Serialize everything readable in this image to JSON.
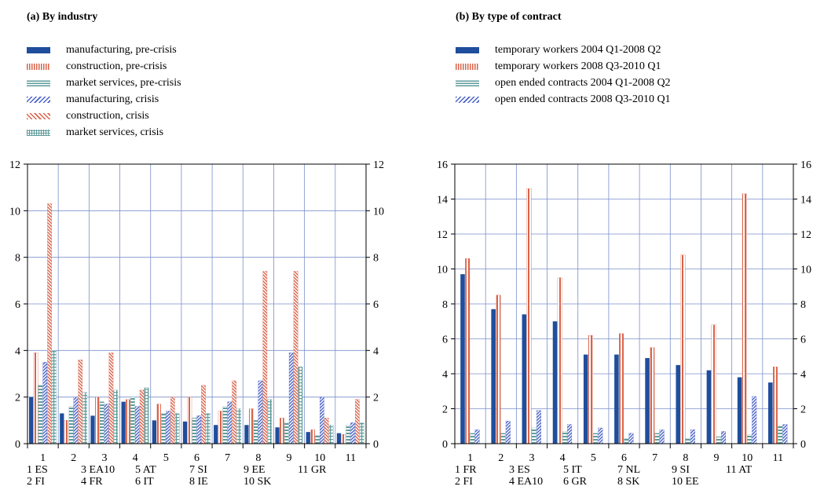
{
  "panels": [
    {
      "title": "(a) By industry",
      "legend": [
        {
          "label": "manufacturing, pre-crisis",
          "color": "#1f4e9c",
          "pattern": "solid"
        },
        {
          "label": "construction, pre-crisis",
          "color": "#d9634a",
          "pattern": "vertical"
        },
        {
          "label": "market services, pre-crisis",
          "color": "#5e9b9b",
          "pattern": "horizontal"
        },
        {
          "label": "manufacturing, crisis",
          "color": "#4a63c6",
          "pattern": "diag-right"
        },
        {
          "label": "construction, crisis",
          "color": "#d9634a",
          "pattern": "diag-left"
        },
        {
          "label": "market services, crisis",
          "color": "#5e9b9b",
          "pattern": "grid"
        }
      ],
      "footnote_lines": [
        [
          "1 ES",
          "3 EA10",
          "5 AT",
          "7 SI",
          "9 EE",
          "11 GR"
        ],
        [
          "2 FI",
          "4 FR",
          "6 IT",
          "8 IE",
          "10 SK"
        ]
      ]
    },
    {
      "title": "(b) By type of contract",
      "legend": [
        {
          "label": "temporary workers 2004 Q1-2008 Q2",
          "color": "#1f4e9c",
          "pattern": "solid"
        },
        {
          "label": "temporary workers 2008 Q3-2010 Q1",
          "color": "#d9634a",
          "pattern": "vertical"
        },
        {
          "label": "open ended contracts 2004 Q1-2008 Q2",
          "color": "#5e9b9b",
          "pattern": "horizontal"
        },
        {
          "label": "open ended contracts 2008 Q3-2010 Q1",
          "color": "#4a63c6",
          "pattern": "diag-right"
        }
      ],
      "footnote_lines": [
        [
          "1 FR",
          "3 ES",
          "5 IT",
          "7 NL",
          "9 SI",
          "11 AT"
        ],
        [
          "2 FI",
          "4 EA10",
          "6 GR",
          "8 SK",
          "10 EE"
        ]
      ]
    }
  ],
  "chart_data": [
    {
      "type": "bar",
      "title": "(a) By industry",
      "categories": [
        "1",
        "2",
        "3",
        "4",
        "5",
        "6",
        "7",
        "8",
        "9",
        "10",
        "11"
      ],
      "ylim": [
        0,
        12
      ],
      "yticks": [
        0,
        2,
        4,
        6,
        8,
        10,
        12
      ],
      "grid": true,
      "series": [
        {
          "name": "manufacturing, pre-crisis",
          "values": [
            2.0,
            1.3,
            1.2,
            1.8,
            1.0,
            0.95,
            0.8,
            0.8,
            0.7,
            0.5,
            0.45
          ]
        },
        {
          "name": "construction, pre-crisis",
          "values": [
            3.9,
            1.0,
            2.0,
            1.9,
            1.7,
            2.0,
            1.4,
            1.5,
            1.1,
            0.6,
            0.4
          ]
        },
        {
          "name": "market services, pre-crisis",
          "values": [
            2.5,
            1.6,
            1.8,
            2.0,
            1.3,
            1.1,
            1.6,
            1.0,
            0.9,
            0.35,
            0.8
          ]
        },
        {
          "name": "manufacturing, crisis",
          "values": [
            3.5,
            2.0,
            1.7,
            1.6,
            1.4,
            1.2,
            1.8,
            2.7,
            3.9,
            2.0,
            0.9
          ]
        },
        {
          "name": "construction, crisis",
          "values": [
            10.3,
            3.6,
            3.9,
            2.3,
            2.0,
            2.5,
            2.7,
            7.4,
            7.4,
            1.1,
            1.9
          ]
        },
        {
          "name": "market services, crisis",
          "values": [
            4.0,
            2.2,
            2.3,
            2.4,
            1.3,
            1.3,
            1.5,
            1.9,
            3.3,
            0.8,
            0.9
          ]
        }
      ]
    },
    {
      "type": "bar",
      "title": "(b) By type of contract",
      "categories": [
        "1",
        "2",
        "3",
        "4",
        "5",
        "6",
        "7",
        "8",
        "9",
        "10",
        "11"
      ],
      "ylim": [
        0,
        16
      ],
      "yticks": [
        0,
        2,
        4,
        6,
        8,
        10,
        12,
        14,
        16
      ],
      "grid": true,
      "series": [
        {
          "name": "temporary workers 2004 Q1-2008 Q2",
          "values": [
            9.7,
            7.7,
            7.4,
            7.0,
            5.1,
            5.1,
            4.9,
            4.5,
            4.2,
            3.8,
            3.5
          ]
        },
        {
          "name": "temporary workers 2008 Q3-2010 Q1",
          "values": [
            10.6,
            8.5,
            14.6,
            9.5,
            6.2,
            6.3,
            5.5,
            10.8,
            6.8,
            14.3,
            4.4
          ]
        },
        {
          "name": "open ended contracts 2004 Q1-2008 Q2",
          "values": [
            0.6,
            0.6,
            0.9,
            0.7,
            0.6,
            0.3,
            0.6,
            0.3,
            0.4,
            0.5,
            1.0
          ]
        },
        {
          "name": "open ended contracts 2008 Q3-2010 Q1",
          "values": [
            0.8,
            1.3,
            1.9,
            1.1,
            0.9,
            0.6,
            0.8,
            0.8,
            0.7,
            2.7,
            1.1
          ]
        }
      ]
    }
  ]
}
